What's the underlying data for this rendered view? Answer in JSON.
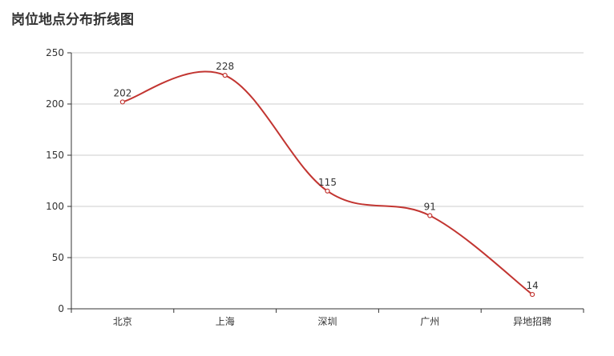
{
  "chart_data": {
    "type": "line",
    "title": "岗位地点分布折线图",
    "categories": [
      "北京",
      "上海",
      "深圳",
      "广州",
      "异地招聘"
    ],
    "series": [
      {
        "values": [
          202,
          228,
          115,
          91,
          14
        ]
      }
    ],
    "ylim": [
      0,
      250
    ],
    "yticks": [
      0,
      50,
      100,
      150,
      200,
      250
    ],
    "smooth": true,
    "grid": true,
    "show_data_labels": true,
    "colors": {
      "line": "#c23531",
      "grid": "#cccccc",
      "axis": "#333333",
      "text": "#333333"
    }
  }
}
